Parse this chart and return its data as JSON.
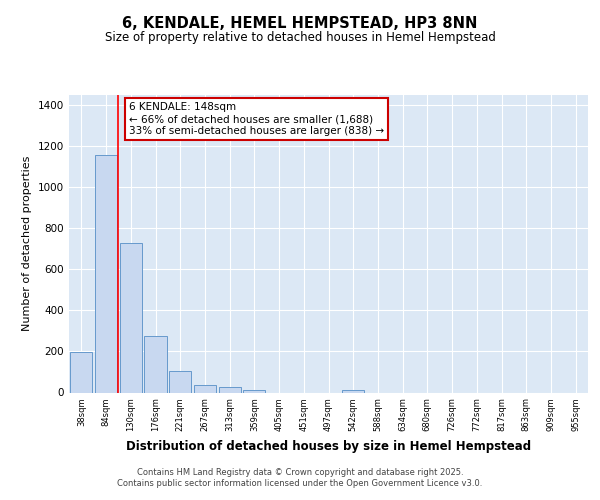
{
  "title": "6, KENDALE, HEMEL HEMPSTEAD, HP3 8NN",
  "subtitle": "Size of property relative to detached houses in Hemel Hempstead",
  "xlabel": "Distribution of detached houses by size in Hemel Hempstead",
  "ylabel": "Number of detached properties",
  "bar_color": "#c8d8f0",
  "bar_edge_color": "#6699cc",
  "annotation_text": "6 KENDALE: 148sqm\n← 66% of detached houses are smaller (1,688)\n33% of semi-detached houses are larger (838) →",
  "annotation_box_color": "#ffffff",
  "annotation_box_edge": "#cc0000",
  "footer_text": "Contains HM Land Registry data © Crown copyright and database right 2025.\nContains public sector information licensed under the Open Government Licence v3.0.",
  "background_color": "#dce8f5",
  "categories": [
    "38sqm",
    "84sqm",
    "130sqm",
    "176sqm",
    "221sqm",
    "267sqm",
    "313sqm",
    "359sqm",
    "405sqm",
    "451sqm",
    "497sqm",
    "542sqm",
    "588sqm",
    "634sqm",
    "680sqm",
    "726sqm",
    "772sqm",
    "817sqm",
    "863sqm",
    "909sqm",
    "955sqm"
  ],
  "values": [
    198,
    1160,
    730,
    275,
    107,
    38,
    28,
    14,
    0,
    0,
    0,
    14,
    0,
    0,
    0,
    0,
    0,
    0,
    0,
    0,
    0
  ],
  "ylim": [
    0,
    1450
  ],
  "yticks": [
    0,
    200,
    400,
    600,
    800,
    1000,
    1200,
    1400
  ],
  "red_line_index": 1.5
}
